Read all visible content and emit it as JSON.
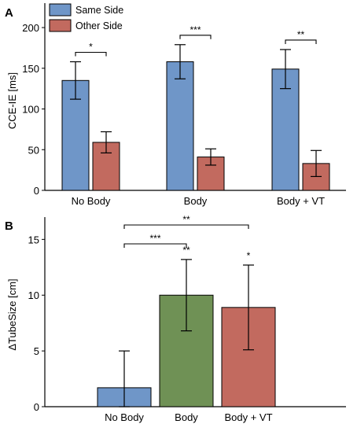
{
  "chart_data": [
    {
      "panel": "A",
      "type": "bar",
      "ylabel": "CCE-IE [ms]",
      "ylim": [
        0,
        230
      ],
      "yticks": [
        0,
        50,
        100,
        150,
        200
      ],
      "categories": [
        "No Body",
        "Body",
        "Body + VT"
      ],
      "series": [
        {
          "name": "Same Side",
          "color": "#6f96c8",
          "values": [
            135,
            158,
            149
          ],
          "errors": [
            23,
            21,
            24
          ]
        },
        {
          "name": "Other Side",
          "color": "#c26a5f",
          "values": [
            59,
            41,
            33
          ],
          "errors": [
            13,
            10,
            16
          ]
        }
      ],
      "legend": "top-left",
      "significance": [
        {
          "category": 0,
          "label": "*"
        },
        {
          "category": 1,
          "label": "***"
        },
        {
          "category": 2,
          "label": "**"
        }
      ]
    },
    {
      "panel": "B",
      "type": "bar",
      "ylabel": "ΔTubeSize [cm]",
      "ylim": [
        0,
        17
      ],
      "yticks": [
        0,
        5,
        10,
        15
      ],
      "categories": [
        "No Body",
        "Body",
        "Body + VT"
      ],
      "colors": [
        "#6f96c8",
        "#6f9155",
        "#c26a5f"
      ],
      "values": [
        1.7,
        10,
        8.9
      ],
      "errors": [
        3.3,
        3.2,
        3.8
      ],
      "bar_stars": [
        "",
        "**",
        "*"
      ],
      "brackets": [
        {
          "from": 0,
          "to": 1,
          "label": "***"
        },
        {
          "from": 0,
          "to": 2,
          "label": "**"
        }
      ]
    }
  ]
}
